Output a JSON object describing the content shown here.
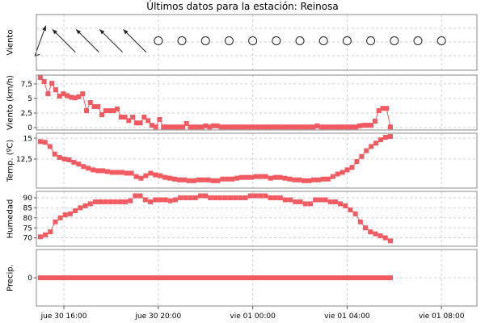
{
  "title": "Últimos datos para la estación: Reinosa",
  "colors": {
    "series": "#f05a60",
    "grid": "#d0d0d0",
    "frame": "#888888",
    "arrow": "#222222"
  },
  "x_axis": {
    "start": "jue 30 15:00",
    "step_minutes": 10,
    "ticks": [
      {
        "label": "jue 30 16:00",
        "index": 6
      },
      {
        "label": "jue 30 20:00",
        "index": 30
      },
      {
        "label": "vie 01 00:00",
        "index": 54
      },
      {
        "label": "vie 01 04:00",
        "index": 78
      },
      {
        "label": "vie 01 08:00",
        "index": 102
      }
    ],
    "range_index": [
      -1,
      111
    ]
  },
  "chart_data": [
    {
      "type": "wind_direction",
      "ylabel": "Viento",
      "arrows": [
        {
          "index": 0,
          "direction": "SSW",
          "barb": true
        },
        {
          "index": 6,
          "direction": "SE"
        },
        {
          "index": 12,
          "direction": "SE"
        },
        {
          "index": 18,
          "direction": "SE"
        },
        {
          "index": 24,
          "direction": "SE"
        }
      ],
      "calm": [
        30,
        36,
        42,
        48,
        54,
        60,
        66,
        72,
        78,
        84,
        90,
        96,
        102
      ]
    },
    {
      "type": "line",
      "ylabel": "Viento (km/h)",
      "ylim": [
        0,
        8.6
      ],
      "yticks": [
        {
          "v": 0,
          "l": "0"
        },
        {
          "v": 2.5,
          "l": "2,5"
        },
        {
          "v": 5,
          "l": "5"
        },
        {
          "v": 7.5,
          "l": "7,5"
        }
      ],
      "values": [
        8.6,
        7.9,
        5.8,
        7.6,
        6.5,
        5.4,
        5.8,
        5.5,
        5.2,
        5.1,
        5.3,
        5.8,
        2.9,
        4.3,
        3.6,
        3.6,
        2.2,
        2.9,
        2.9,
        2.9,
        3.2,
        1.8,
        1.8,
        1.2,
        1.8,
        0.8,
        0.8,
        1.8,
        1.2,
        0.4,
        0.1,
        1.4,
        0.1,
        0.1,
        0.1,
        0.1,
        0.1,
        0.1,
        0.7,
        0.1,
        0.1,
        0.1,
        0.1,
        0.3,
        0.1,
        0.3,
        0.3,
        0.1,
        0.1,
        0.1,
        0.1,
        0.1,
        0.1,
        0.1,
        0.1,
        0.1,
        0.1,
        0.1,
        0.1,
        0.1,
        0.1,
        0.1,
        0.1,
        0.1,
        0.1,
        0.1,
        0.1,
        0.1,
        0.1,
        0.1,
        0.1,
        0.1,
        0.3,
        0.1,
        0.1,
        0.1,
        0.1,
        0.1,
        0.1,
        0.1,
        0.1,
        0.1,
        0.1,
        0.3,
        0.4,
        0.4,
        0.4,
        1.1,
        2.9,
        3.3,
        3.3,
        0.1
      ]
    },
    {
      "type": "line",
      "ylabel": "Temp. (ºC)",
      "ylim": [
        9.3,
        15.3
      ],
      "yticks": [
        {
          "v": 12.5,
          "l": "12,5"
        },
        {
          "v": 15,
          "l": "15"
        }
      ],
      "values": [
        14.6,
        14.5,
        14.0,
        13.1,
        12.7,
        12.5,
        12.4,
        12.1,
        11.9,
        11.6,
        11.4,
        11.2,
        11.1,
        11.1,
        11.0,
        10.9,
        10.9,
        10.9,
        10.8,
        10.8,
        10.4,
        10.2,
        10.5,
        10.8,
        10.6,
        10.5,
        10.3,
        10.2,
        10.1,
        10.0,
        10.0,
        9.9,
        9.9,
        10.0,
        10.0,
        10.0,
        9.9,
        9.9,
        10.1,
        10.1,
        10.1,
        10.2,
        10.3,
        10.3,
        10.3,
        10.4,
        10.4,
        10.4,
        10.2,
        10.3,
        10.3,
        10.2,
        10.1,
        10.0,
        10.0,
        9.9,
        9.9,
        10.0,
        10.0,
        10.1,
        10.1,
        10.4,
        10.7,
        10.9,
        11.2,
        11.5,
        12.2,
        12.8,
        13.5,
        14.0,
        14.4,
        14.8,
        15.1,
        15.2
      ]
    },
    {
      "type": "line",
      "ylabel": "Humedad",
      "ylim": [
        67,
        92
      ],
      "yticks": [
        {
          "v": 70,
          "l": "70"
        },
        {
          "v": 75,
          "l": "75"
        },
        {
          "v": 80,
          "l": "80"
        },
        {
          "v": 85,
          "l": "85"
        },
        {
          "v": 90,
          "l": "90"
        }
      ],
      "values": [
        70.5,
        71.5,
        73,
        78,
        80,
        81.5,
        82,
        83.5,
        85,
        86,
        87,
        88,
        88,
        88,
        88,
        88,
        88,
        88,
        88.5,
        91,
        91,
        89,
        88,
        89,
        89,
        89,
        88.5,
        89,
        90,
        90,
        90,
        90,
        91,
        91,
        90,
        90,
        90,
        90,
        90,
        90,
        90,
        90,
        91,
        91,
        91,
        91,
        90,
        90,
        90,
        89,
        89,
        88,
        88,
        87,
        87,
        89,
        89,
        89,
        88,
        88,
        87,
        86,
        84,
        82,
        78,
        75,
        73,
        72,
        71,
        70,
        68.5
      ]
    },
    {
      "type": "line",
      "ylabel": "Precip.",
      "ylim": [
        -1,
        1
      ],
      "yticks": [
        {
          "v": 0,
          "l": "0"
        }
      ],
      "constant": 0
    }
  ]
}
